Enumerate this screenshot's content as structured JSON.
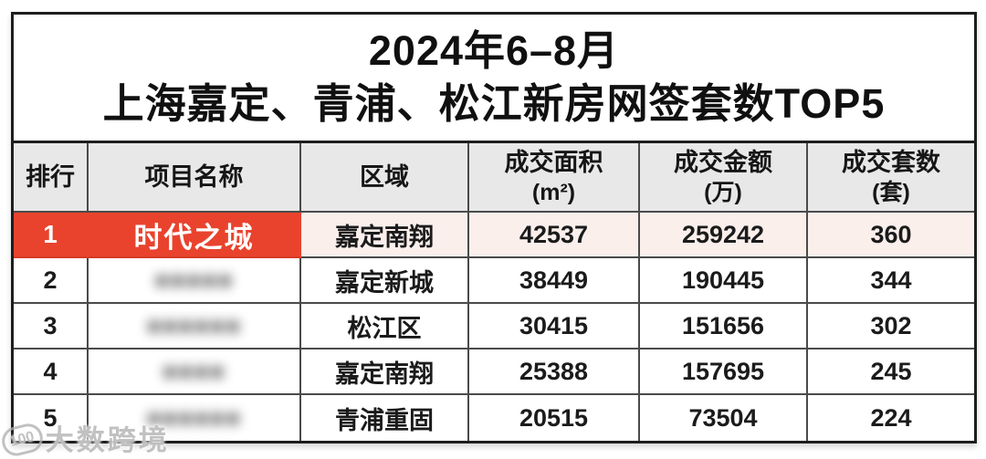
{
  "title": {
    "line1": "2024年6–8月",
    "line2": "上海嘉定、青浦、松江新房网签套数TOP5"
  },
  "columns": {
    "rank": {
      "label": "排行"
    },
    "name": {
      "label": "项目名称"
    },
    "district": {
      "label": "区域"
    },
    "area": {
      "label": "成交面积",
      "unit": "(m²)"
    },
    "amount": {
      "label": "成交金额",
      "unit": "(万)"
    },
    "units": {
      "label": "成交套数",
      "unit": "(套)"
    }
  },
  "rows": [
    {
      "rank": "1",
      "name": "时代之城",
      "name_redacted": false,
      "district": "嘉定南翔",
      "area": "42537",
      "amount": "259242",
      "units": "360",
      "highlighted": true
    },
    {
      "rank": "2",
      "name": "■■■■■",
      "name_redacted": true,
      "district": "嘉定新城",
      "area": "38449",
      "amount": "190445",
      "units": "344",
      "highlighted": false
    },
    {
      "rank": "3",
      "name": "■■■■■■",
      "name_redacted": true,
      "district": "松江区",
      "area": "30415",
      "amount": "151656",
      "units": "302",
      "highlighted": false
    },
    {
      "rank": "4",
      "name": "■■■■",
      "name_redacted": true,
      "district": "嘉定南翔",
      "area": "25388",
      "amount": "157695",
      "units": "245",
      "highlighted": false
    },
    {
      "rank": "5",
      "name": "■■■■■■",
      "name_redacted": true,
      "district": "青浦重固",
      "area": "20515",
      "amount": "73504",
      "units": "224",
      "highlighted": false
    }
  ],
  "watermark": {
    "logo": "100",
    "text": "大数跨境"
  },
  "colors": {
    "highlight_red": "#E9432D",
    "highlight_row_bg": "#FBEFEC",
    "header_bg": "#E8E8E8",
    "grid_border": "#4A4A4A",
    "outer_border": "#1E1E1E"
  },
  "chart_data": {
    "type": "table",
    "title": "2024年6–8月 上海嘉定、青浦、松江新房网签套数TOP5",
    "columns": [
      "排行",
      "项目名称",
      "区域",
      "成交面积(m²)",
      "成交金额(万)",
      "成交套数(套)"
    ],
    "rows": [
      [
        1,
        "时代之城",
        "嘉定南翔",
        42537,
        259242,
        360
      ],
      [
        2,
        "(已打码)",
        "嘉定新城",
        38449,
        190445,
        344
      ],
      [
        3,
        "(已打码)",
        "松江区",
        30415,
        151656,
        302
      ],
      [
        4,
        "(已打码)",
        "嘉定南翔",
        25388,
        157695,
        245
      ],
      [
        5,
        "(已打码)",
        "青浦重固",
        20515,
        73504,
        224
      ]
    ],
    "notes": "Row 1 highlighted in red; project names of ranks 2-5 are blurred in source image"
  }
}
